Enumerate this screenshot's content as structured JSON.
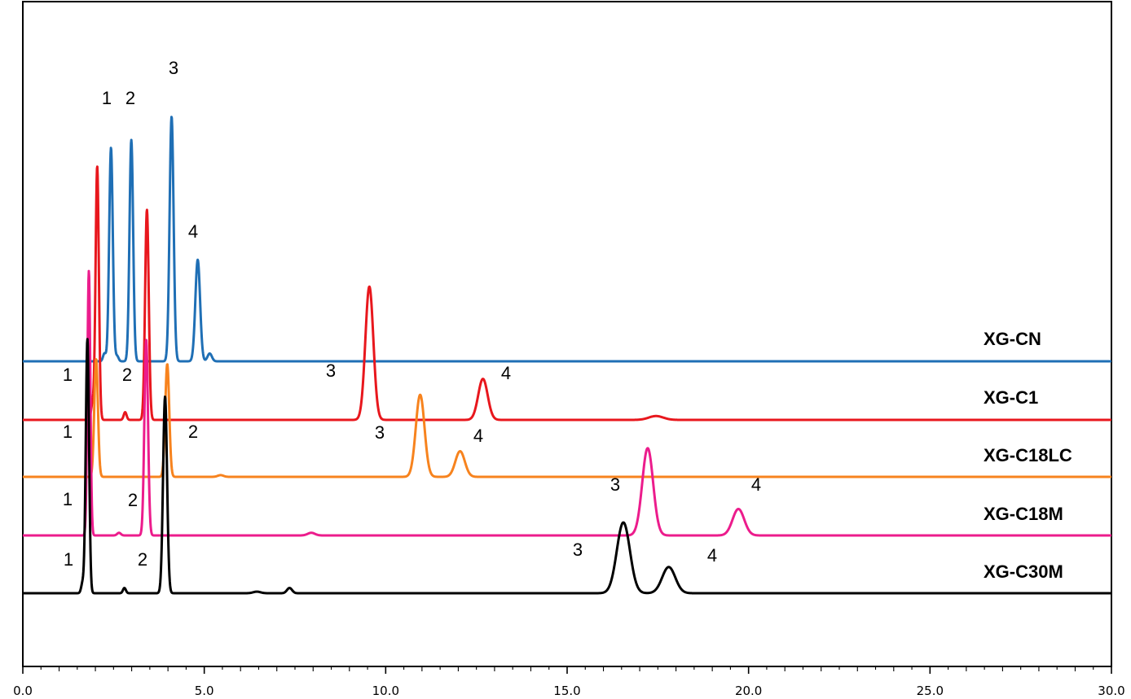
{
  "chart_data": {
    "type": "line",
    "title": "",
    "xlabel": "",
    "ylabel": "",
    "xlim": [
      0,
      30
    ],
    "x_ticks": [
      "0.0",
      "5.0",
      "10.0",
      "15.0",
      "20.0",
      "25.0",
      "30.0"
    ],
    "grid": false,
    "legend": "right, inline labels beside each trace",
    "series": [
      {
        "name": "XG-CN",
        "color": "#1f6fb5",
        "peaks": [
          {
            "label": "1",
            "rt": 2.43,
            "height": 0.82,
            "width": 0.05
          },
          {
            "label": "2",
            "rt": 2.99,
            "height": 0.85,
            "width": 0.05
          },
          {
            "label": "3",
            "rt": 4.1,
            "height": 0.94,
            "width": 0.055
          },
          {
            "label": "4",
            "rt": 4.82,
            "height": 0.39,
            "width": 0.065
          }
        ],
        "minor_peaks": [
          {
            "rt": 2.25,
            "height": 0.03,
            "width": 0.04
          },
          {
            "rt": 2.6,
            "height": 0.02,
            "width": 0.04
          },
          {
            "rt": 5.15,
            "height": 0.03,
            "width": 0.06
          }
        ]
      },
      {
        "name": "XG-C1",
        "color": "#e8171d",
        "peaks": [
          {
            "label": "1",
            "rt": 2.05,
            "height": 0.99,
            "width": 0.045
          },
          {
            "label": "2",
            "rt": 3.42,
            "height": 0.82,
            "width": 0.05
          },
          {
            "label": "3",
            "rt": 9.55,
            "height": 0.52,
            "width": 0.11
          },
          {
            "label": "4",
            "rt": 12.68,
            "height": 0.16,
            "width": 0.13
          }
        ],
        "minor_peaks": [
          {
            "rt": 1.92,
            "height": 0.06,
            "width": 0.04
          },
          {
            "rt": 2.82,
            "height": 0.03,
            "width": 0.04
          },
          {
            "rt": 17.45,
            "height": 0.015,
            "width": 0.2
          }
        ]
      },
      {
        "name": "XG-C18LC",
        "color": "#f7831e",
        "peaks": [
          {
            "label": "1",
            "rt": 2.02,
            "height": 0.69,
            "width": 0.05
          },
          {
            "label": "2",
            "rt": 3.98,
            "height": 0.66,
            "width": 0.055
          },
          {
            "label": "3",
            "rt": 10.95,
            "height": 0.48,
            "width": 0.12
          },
          {
            "label": "4",
            "rt": 12.05,
            "height": 0.15,
            "width": 0.13
          }
        ],
        "minor_peaks": [
          {
            "rt": 5.45,
            "height": 0.01,
            "width": 0.08
          }
        ]
      },
      {
        "name": "XG-C18M",
        "color": "#ec1c8c",
        "peaks": [
          {
            "label": "1",
            "rt": 1.82,
            "height": 1.0,
            "width": 0.04
          },
          {
            "label": "2",
            "rt": 3.4,
            "height": 0.74,
            "width": 0.05
          },
          {
            "label": "3",
            "rt": 17.22,
            "height": 0.33,
            "width": 0.15
          },
          {
            "label": "4",
            "rt": 19.72,
            "height": 0.1,
            "width": 0.16
          }
        ],
        "minor_peaks": [
          {
            "rt": 2.65,
            "height": 0.01,
            "width": 0.05
          },
          {
            "rt": 7.95,
            "height": 0.01,
            "width": 0.1
          }
        ]
      },
      {
        "name": "XG-C30M",
        "color": "#000000",
        "peaks": [
          {
            "label": "1",
            "rt": 1.78,
            "height": 0.97,
            "width": 0.045
          },
          {
            "label": "2",
            "rt": 3.92,
            "height": 0.75,
            "width": 0.055
          },
          {
            "label": "3",
            "rt": 16.55,
            "height": 0.27,
            "width": 0.18
          },
          {
            "label": "4",
            "rt": 17.8,
            "height": 0.1,
            "width": 0.18
          }
        ],
        "minor_peaks": [
          {
            "rt": 1.65,
            "height": 0.04,
            "width": 0.04
          },
          {
            "rt": 2.8,
            "height": 0.02,
            "width": 0.04
          },
          {
            "rt": 6.45,
            "height": 0.006,
            "width": 0.1
          },
          {
            "rt": 7.35,
            "height": 0.02,
            "width": 0.07
          }
        ]
      }
    ]
  }
}
